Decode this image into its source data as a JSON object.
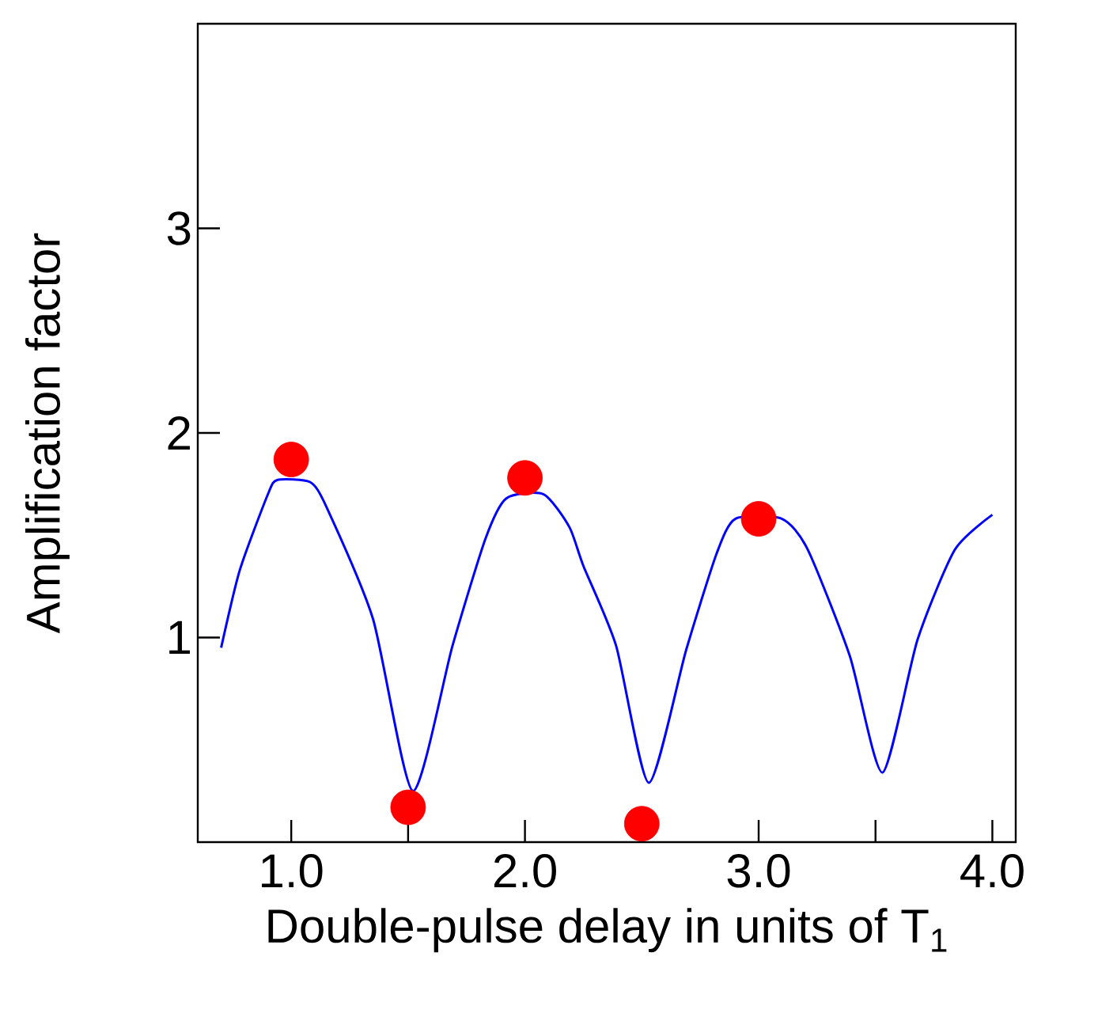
{
  "chart_data": {
    "type": "line",
    "xlabel": "Double-pulse delay in units of T$_{1}$",
    "ylabel": "Amplification factor",
    "xlim": [
      0.6,
      4.1
    ],
    "ylim": [
      0,
      4
    ],
    "xticks": [
      {
        "value": 1,
        "label": "1.0"
      },
      {
        "value": 1.5,
        "label": null
      },
      {
        "value": 2,
        "label": "2.0"
      },
      {
        "value": 2.5,
        "label": null
      },
      {
        "value": 3,
        "label": "3.0"
      },
      {
        "value": 3.5,
        "label": null
      },
      {
        "value": 4,
        "label": "4.0"
      }
    ],
    "yticks": [
      1,
      2,
      3
    ],
    "series": [
      {
        "color": "#0000ff",
        "marker": "none",
        "x": [
          0.7,
          0.78,
          0.9,
          0.94,
          1.08,
          1.15,
          1.35,
          1.52,
          1.69,
          1.83,
          1.92,
          2.08,
          2.19,
          2.25,
          2.39,
          2.53,
          2.69,
          2.82,
          2.9,
          3.1,
          3.21,
          3.39,
          3.53,
          3.68,
          3.84,
          4.0
        ],
        "values": [
          0.95,
          1.33,
          1.7,
          1.77,
          1.76,
          1.64,
          1.09,
          0.25,
          0.96,
          1.48,
          1.68,
          1.7,
          1.54,
          1.35,
          0.96,
          0.29,
          0.94,
          1.41,
          1.58,
          1.58,
          1.43,
          0.91,
          0.34,
          0.99,
          1.43,
          1.6
        ]
      },
      {
        "type": "scatter",
        "color": "#ff0000",
        "marker": "circle",
        "x": [
          1.0,
          1.5,
          2.0,
          2.5,
          3.0
        ],
        "values": [
          1.87,
          0.17,
          1.78,
          0.09,
          1.58
        ]
      }
    ]
  }
}
